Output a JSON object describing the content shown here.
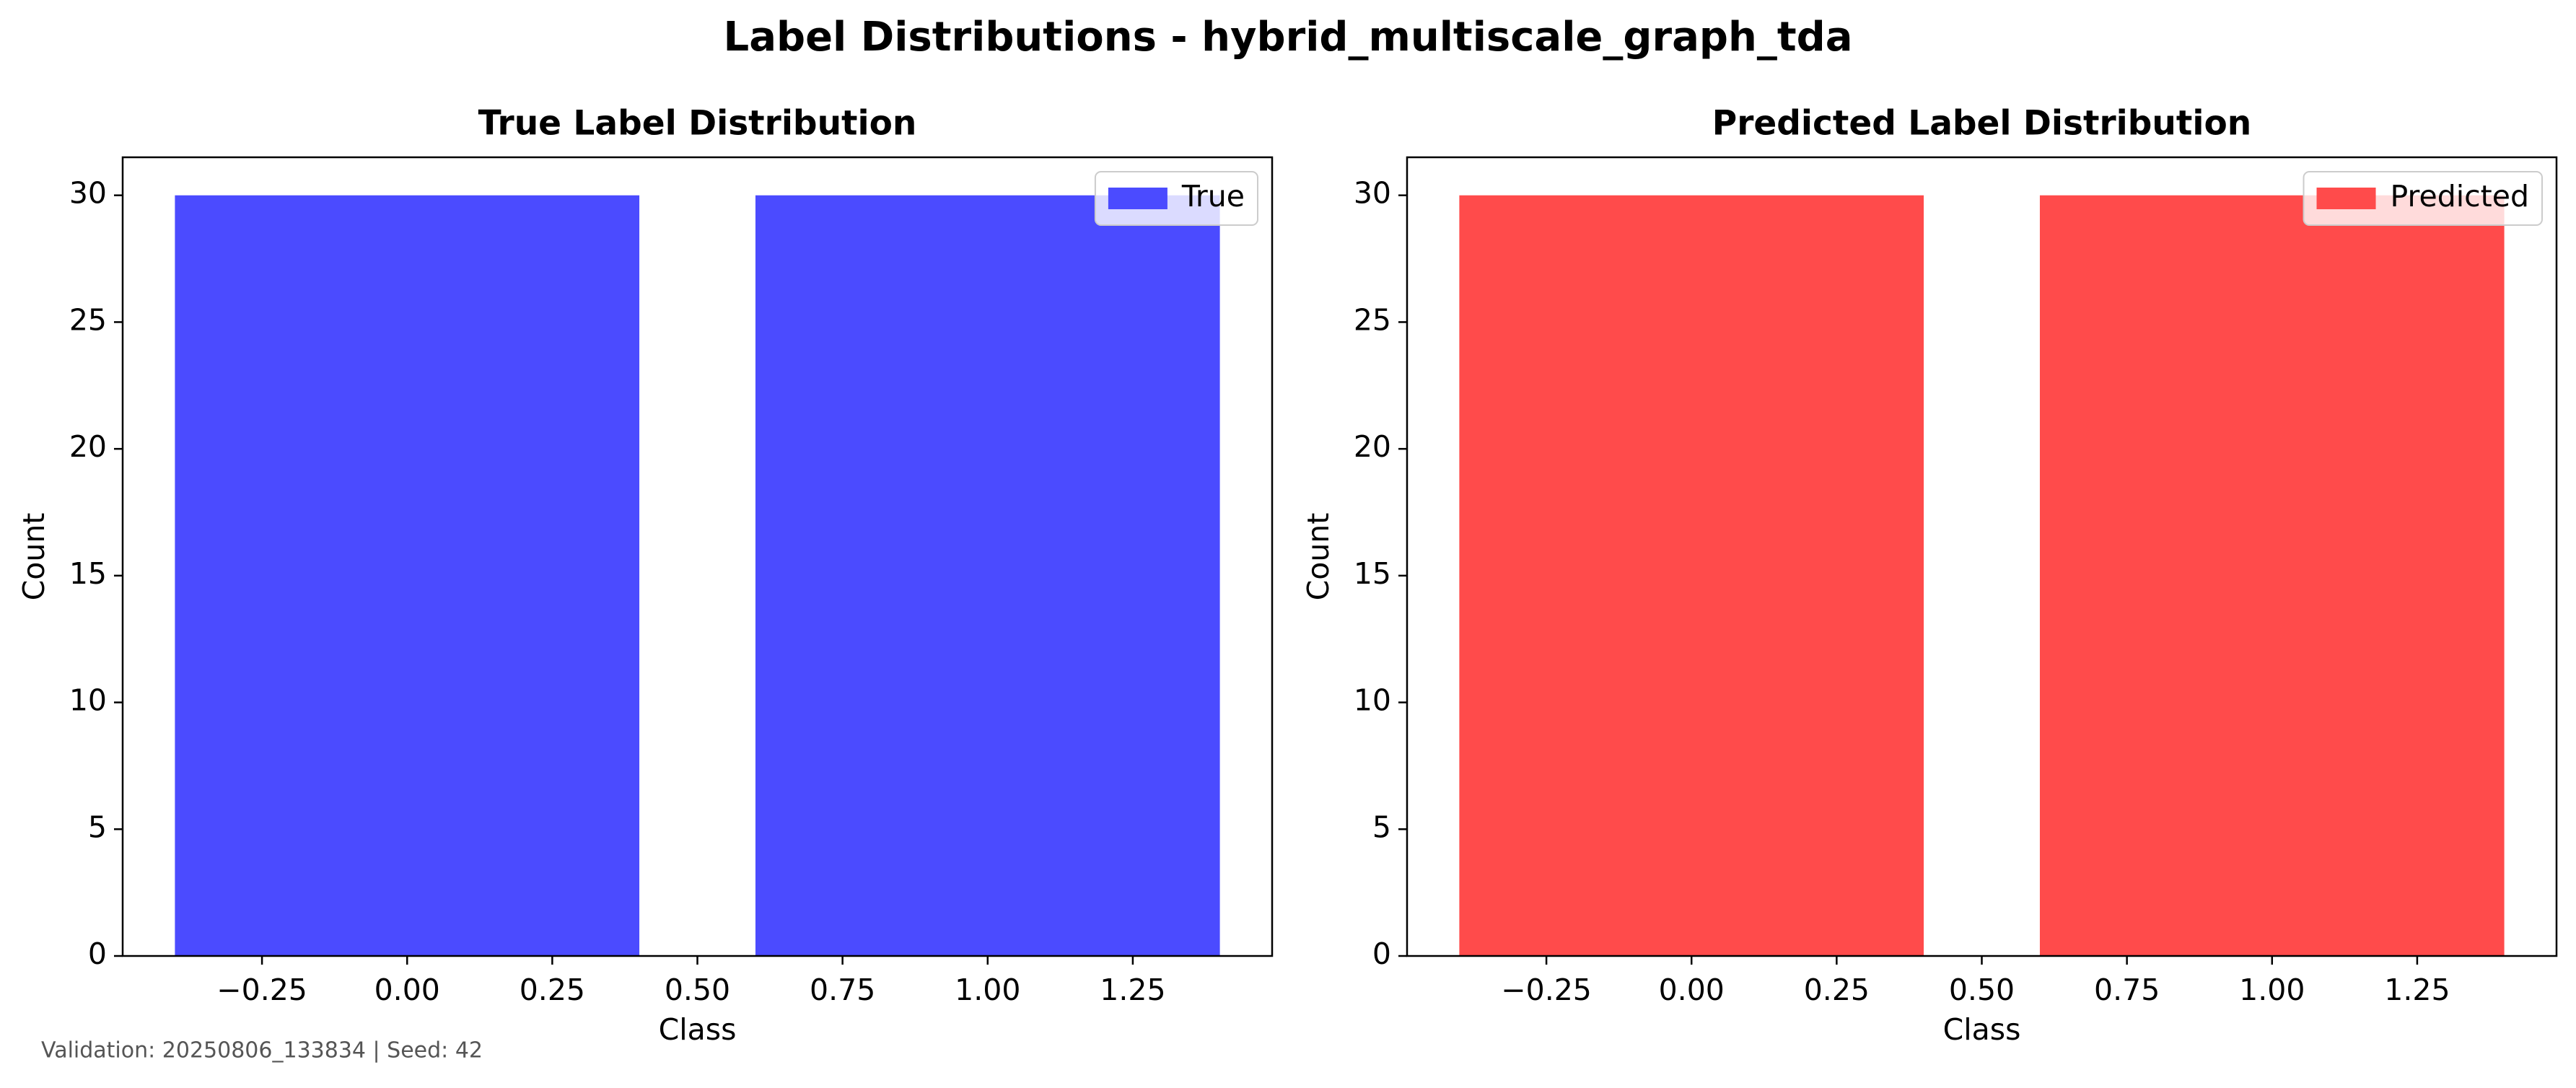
{
  "figure": {
    "suptitle": "Label Distributions - hybrid_multiscale_graph_tda",
    "footer": "Validation: 20250806_133834 | Seed: 42"
  },
  "chart_data": [
    {
      "type": "bar",
      "title": "True Label Distribution",
      "xlabel": "Class",
      "ylabel": "Count",
      "x": [
        0,
        1
      ],
      "values": [
        30,
        30
      ],
      "bar_width": 0.8,
      "xlim": [
        -0.49,
        1.49
      ],
      "ylim": [
        0,
        31.5
      ],
      "xticks": [
        -0.25,
        0.0,
        0.25,
        0.5,
        0.75,
        1.0,
        1.25
      ],
      "xtick_labels": [
        "−0.25",
        "0.00",
        "0.25",
        "0.50",
        "0.75",
        "1.00",
        "1.25"
      ],
      "yticks": [
        0,
        5,
        10,
        15,
        20,
        25,
        30
      ],
      "ytick_labels": [
        "0",
        "5",
        "10",
        "15",
        "20",
        "25",
        "30"
      ],
      "color": "#4B4BFF",
      "legend": {
        "label": "True",
        "position": "upper right"
      },
      "grid": false
    },
    {
      "type": "bar",
      "title": "Predicted Label Distribution",
      "xlabel": "Class",
      "ylabel": "Count",
      "x": [
        0,
        1
      ],
      "values": [
        30,
        30
      ],
      "bar_width": 0.8,
      "xlim": [
        -0.49,
        1.49
      ],
      "ylim": [
        0,
        31.5
      ],
      "xticks": [
        -0.25,
        0.0,
        0.25,
        0.5,
        0.75,
        1.0,
        1.25
      ],
      "xtick_labels": [
        "−0.25",
        "0.00",
        "0.25",
        "0.50",
        "0.75",
        "1.00",
        "1.25"
      ],
      "yticks": [
        0,
        5,
        10,
        15,
        20,
        25,
        30
      ],
      "ytick_labels": [
        "0",
        "5",
        "10",
        "15",
        "20",
        "25",
        "30"
      ],
      "color": "#FF4B4B",
      "legend": {
        "label": "Predicted",
        "position": "upper right"
      },
      "grid": false
    }
  ]
}
